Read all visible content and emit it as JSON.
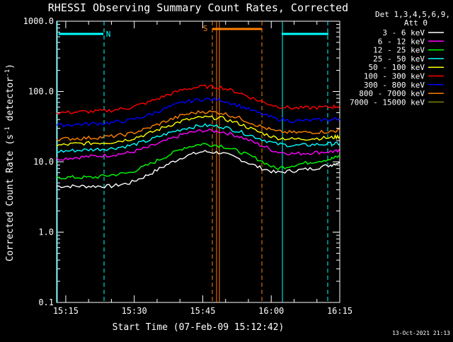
{
  "chart_data": {
    "type": "line",
    "title": "RHESSI Observing Summary Count Rates, Corrected",
    "xlabel": "Start Time (07-Feb-09 15:12:42)",
    "ylabel_main": "Corrected Count Rate (s",
    "ylabel_sup1": "-1",
    "ylabel_mid": " detector",
    "ylabel_sup2": "-1",
    "ylabel_end": ")",
    "yscale": "log",
    "ylim": [
      0.1,
      1000.0
    ],
    "xlim_minutes": [
      -2,
      60
    ],
    "y_ticks": [
      {
        "value": 1000.0,
        "label": "1000.0"
      },
      {
        "value": 100.0,
        "label": "100.0"
      },
      {
        "value": 10.0,
        "label": "10.0"
      },
      {
        "value": 1.0,
        "label": "1.0"
      },
      {
        "value": 0.1,
        "label": "0.1"
      }
    ],
    "x_ticks": [
      {
        "value": 0,
        "label": "15:15"
      },
      {
        "value": 15,
        "label": "15:30"
      },
      {
        "value": 30,
        "label": "15:45"
      },
      {
        "value": 45,
        "label": "16:00"
      },
      {
        "value": 60,
        "label": "16:15"
      }
    ],
    "legend_header": [
      "Det 1,3,4,5,6,9,",
      "Att 0"
    ],
    "timestamp": "13-Oct-2021 21:13",
    "annotations": {
      "night_label": "N",
      "saa_label": "S"
    },
    "series": [
      {
        "name": "3 - 6 keV",
        "color": "#ffffff",
        "x": [
          -2,
          2,
          6,
          10,
          14,
          18,
          22,
          26,
          30,
          34,
          38,
          42,
          46,
          50,
          54,
          58,
          60
        ],
        "y": [
          4.5,
          4.5,
          4.5,
          4.5,
          5.0,
          6.5,
          9.0,
          12.0,
          14.0,
          13.5,
          11.0,
          8.5,
          7.0,
          7.5,
          8.0,
          9.0,
          10.0
        ]
      },
      {
        "name": "6 - 12 keV",
        "color": "#ff00ff",
        "x": [
          -2,
          2,
          6,
          10,
          14,
          18,
          22,
          26,
          30,
          34,
          38,
          42,
          46,
          50,
          54,
          58,
          60
        ],
        "y": [
          11.0,
          11.5,
          12.0,
          12.5,
          13.5,
          16.0,
          20.0,
          25.0,
          28.0,
          27.0,
          23.0,
          18.0,
          14.0,
          13.0,
          13.5,
          14.0,
          14.0
        ]
      },
      {
        "name": "12 - 25 keV",
        "color": "#00ff00",
        "x": [
          -2,
          2,
          6,
          10,
          14,
          18,
          22,
          26,
          30,
          34,
          38,
          42,
          46,
          50,
          54,
          58,
          60
        ],
        "y": [
          6.0,
          6.0,
          6.0,
          6.5,
          7.0,
          9.0,
          12.0,
          16.0,
          18.0,
          17.0,
          14.0,
          11.0,
          8.0,
          9.0,
          10.0,
          11.0,
          12.0
        ]
      },
      {
        "name": "25 - 50 keV",
        "color": "#00ffff",
        "x": [
          -2,
          2,
          6,
          10,
          14,
          18,
          22,
          26,
          30,
          34,
          38,
          42,
          46,
          50,
          54,
          58,
          60
        ],
        "y": [
          14.0,
          14.5,
          15.0,
          15.5,
          17.0,
          20.0,
          25.0,
          30.0,
          33.0,
          32.0,
          27.0,
          22.0,
          18.0,
          17.0,
          17.5,
          18.0,
          18.0
        ]
      },
      {
        "name": "50 - 100 keV",
        "color": "#ffff00",
        "x": [
          -2,
          2,
          6,
          10,
          14,
          18,
          22,
          26,
          30,
          34,
          38,
          42,
          46,
          50,
          54,
          58,
          60
        ],
        "y": [
          17.0,
          18.0,
          18.5,
          19.0,
          21.0,
          25.0,
          32.0,
          39.0,
          43.0,
          42.0,
          35.0,
          27.0,
          22.0,
          21.0,
          21.5,
          22.0,
          23.0
        ]
      },
      {
        "name": "100 - 300 keV",
        "color": "#ff0000",
        "x": [
          -2,
          2,
          6,
          10,
          14,
          18,
          22,
          26,
          30,
          34,
          38,
          42,
          46,
          50,
          54,
          58,
          60
        ],
        "y": [
          50.0,
          51.0,
          52.0,
          54.0,
          59.0,
          70.0,
          88.0,
          108.0,
          118.0,
          115.0,
          96.0,
          75.0,
          62.0,
          58.0,
          59.0,
          60.0,
          62.0
        ]
      },
      {
        "name": "300 - 800 keV",
        "color": "#0000ff",
        "x": [
          -2,
          2,
          6,
          10,
          14,
          18,
          22,
          26,
          30,
          34,
          38,
          42,
          46,
          50,
          54,
          58,
          60
        ],
        "y": [
          33.0,
          34.0,
          35.0,
          36.0,
          39.0,
          46.0,
          58.0,
          71.0,
          78.0,
          76.0,
          63.0,
          50.0,
          41.0,
          38.0,
          39.0,
          40.0,
          41.0
        ]
      },
      {
        "name": "800 - 7000 keV",
        "color": "#ff8000",
        "x": [
          -2,
          2,
          6,
          10,
          14,
          18,
          22,
          26,
          30,
          34,
          38,
          42,
          46,
          50,
          54,
          58,
          60
        ],
        "y": [
          21.0,
          21.5,
          22.0,
          23.0,
          25.0,
          30.0,
          38.0,
          47.0,
          52.0,
          50.0,
          42.0,
          33.0,
          27.0,
          26.0,
          26.5,
          27.0,
          28.0
        ]
      },
      {
        "name": "7000 - 15000 keV",
        "color": "#808000",
        "x": [],
        "y": []
      }
    ]
  }
}
